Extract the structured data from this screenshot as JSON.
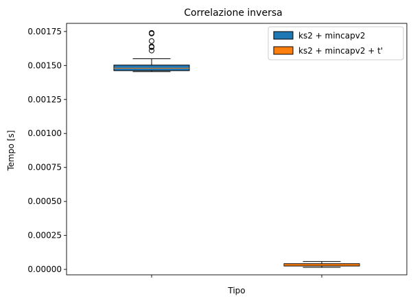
{
  "chart_data": {
    "type": "box",
    "title": "Correlazione inversa",
    "xlabel": "Tipo",
    "ylabel": "Tempo [s]",
    "ylim": [
      -4e-05,
      0.00181
    ],
    "yticks": [
      "0.00000",
      "0.00025",
      "0.00050",
      "0.00075",
      "0.00100",
      "0.00125",
      "0.00150",
      "0.00175"
    ],
    "ytick_values": [
      0,
      0.00025,
      0.0005,
      0.00075,
      0.001,
      0.00125,
      0.0015,
      0.00175
    ],
    "grid": false,
    "legend_position": "top-right",
    "series": [
      {
        "name": "ks2 + mincapv2",
        "color": "#1f77b4",
        "whisker_low": 0.001455,
        "q1": 0.001462,
        "median": 0.00148,
        "q3": 0.001503,
        "whisker_high": 0.00155,
        "fliers": [
          0.00174,
          0.001735,
          0.00168,
          0.00164,
          0.001635,
          0.00161
        ]
      },
      {
        "name": "ks2 + mincapv2 + t'",
        "color": "#ff7f0e",
        "whisker_low": 1.5e-05,
        "q1": 2.5e-05,
        "median": 3.3e-05,
        "q3": 4.2e-05,
        "whisker_high": 5.8e-05,
        "fliers": []
      }
    ]
  }
}
